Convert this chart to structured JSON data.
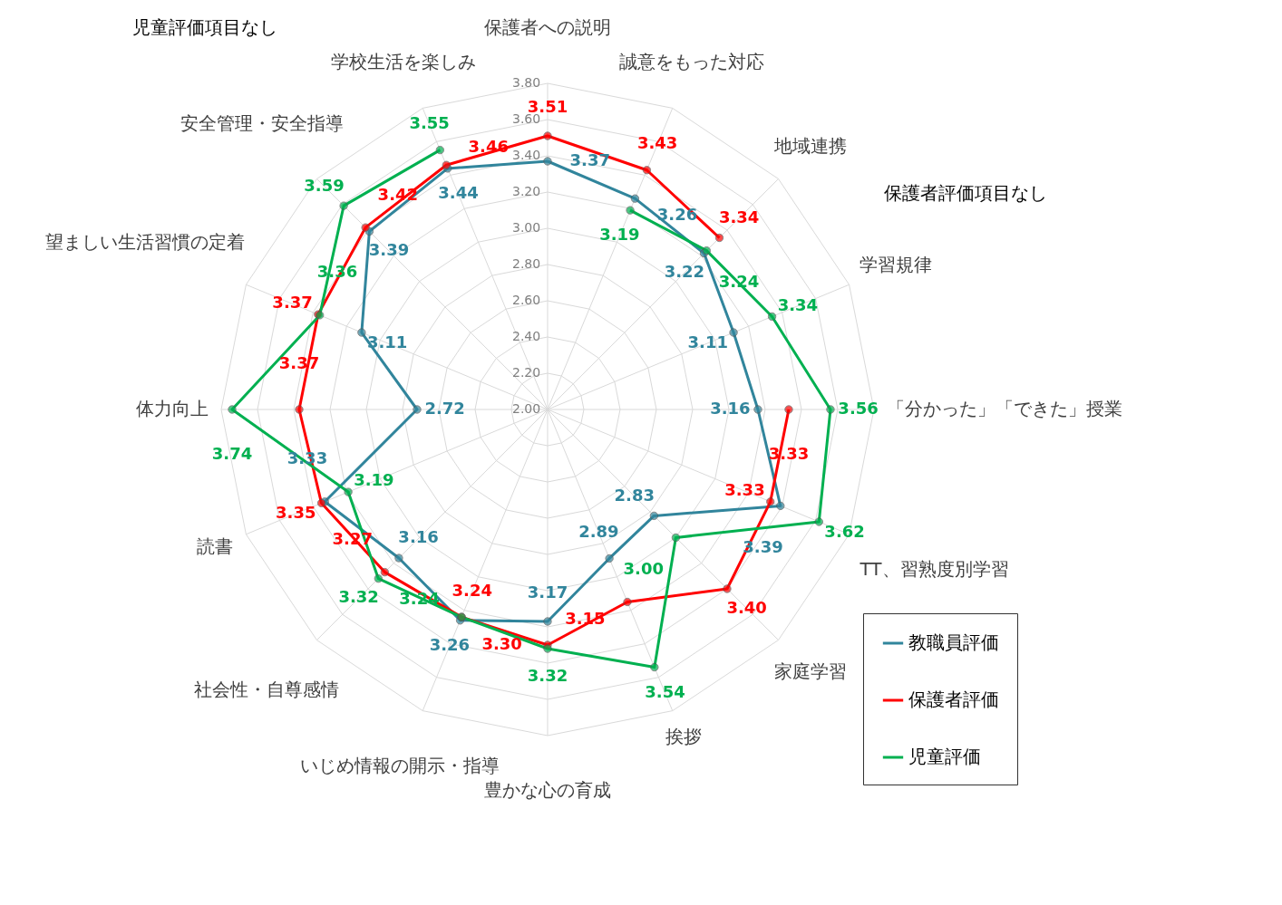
{
  "chart_data": {
    "type": "radar",
    "categories": [
      "保護者への説明",
      "誠意をもった対応",
      "地域連携",
      "学習規律",
      "「分かった」「できた」授業",
      "TT、習熟度別学習",
      "家庭学習",
      "挨拶",
      "豊かな心の育成",
      "いじめ情報の開示・指導",
      "社会性・自尊感情",
      "読書",
      "体力向上",
      "望ましい生活習慣の定着",
      "安全管理・安全指導",
      "学校生活を楽しみ"
    ],
    "series": [
      {
        "name": "教職員評価",
        "color": "#31859c",
        "values": [
          3.37,
          3.26,
          3.22,
          3.11,
          3.16,
          3.39,
          2.83,
          2.89,
          3.17,
          3.26,
          3.16,
          3.33,
          2.72,
          3.11,
          3.39,
          3.44
        ],
        "value_labels": [
          "3.37",
          "3.26",
          "3.22",
          "3.11",
          "3.16",
          "3.39",
          "2.83",
          "2.89",
          "3.17",
          "3.26",
          "3.16",
          "3.33",
          "2.72",
          "3.11",
          "3.39",
          "3.44"
        ]
      },
      {
        "name": "保護者評価",
        "color": "#ff0000",
        "values": [
          3.51,
          3.43,
          3.34,
          null,
          3.33,
          3.33,
          3.4,
          3.15,
          3.3,
          3.24,
          3.27,
          3.35,
          3.37,
          3.37,
          3.42,
          3.46
        ],
        "value_labels": [
          "3.51",
          "3.43",
          "3.34",
          null,
          "3.33",
          "3.33",
          "3.40",
          "3.15",
          "3.30",
          "3.24",
          "3.27",
          "3.35",
          "3.37",
          "3.37",
          "3.42",
          "3.46"
        ]
      },
      {
        "name": "児童評価",
        "color": "#00b050",
        "values": [
          null,
          3.19,
          3.24,
          3.34,
          3.56,
          3.62,
          3.0,
          3.54,
          3.32,
          3.24,
          3.32,
          3.19,
          3.74,
          3.36,
          3.59,
          3.55
        ],
        "value_labels": [
          null,
          "3.19",
          "3.24",
          "3.34",
          "3.56",
          "3.62",
          "3.00",
          "3.54",
          "3.32",
          "3.24",
          "3.32",
          "3.19",
          "3.74",
          "3.36",
          "3.59",
          "3.55"
        ]
      }
    ],
    "ylim": [
      2.0,
      3.8
    ],
    "yticks": [
      {
        "value": 2.0,
        "label": "2.00"
      },
      {
        "value": 2.2,
        "label": "2.20"
      },
      {
        "value": 2.4,
        "label": "2.40"
      },
      {
        "value": 2.6,
        "label": "2.60"
      },
      {
        "value": 2.8,
        "label": "2.80"
      },
      {
        "value": 3.0,
        "label": "3.00"
      },
      {
        "value": 3.2,
        "label": "3.20"
      },
      {
        "value": 3.4,
        "label": "3.40"
      },
      {
        "value": 3.6,
        "label": "3.60"
      },
      {
        "value": 3.8,
        "label": "3.80"
      }
    ],
    "grid": true,
    "legend": "bottom right",
    "marker": "circle",
    "annotations": [
      "児童評価項目なし",
      "保護者評価項目なし"
    ]
  }
}
